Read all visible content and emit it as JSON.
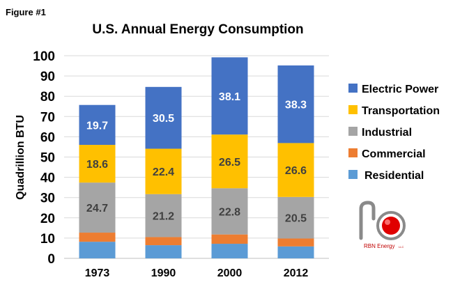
{
  "figure_label": "Figure #1",
  "logo_text": "RBN Energy",
  "logo_suffix": "LLC",
  "chart_data": {
    "type": "bar",
    "stacked": true,
    "title": "U.S. Annual Energy Consumption",
    "xlabel": "",
    "ylabel": "Quadrillion BTU",
    "ylim": [
      0,
      100
    ],
    "yticks": [
      0,
      10,
      20,
      30,
      40,
      50,
      60,
      70,
      80,
      90,
      100
    ],
    "grid": true,
    "legend_position": "right",
    "categories": [
      "1973",
      "1990",
      "2000",
      "2012"
    ],
    "series": [
      {
        "name": "Residential",
        "color": "#5b9bd5",
        "values": [
          8.2,
          6.5,
          7.2,
          5.9
        ],
        "labels": [
          "",
          "",
          "",
          ""
        ]
      },
      {
        "name": "Commercial",
        "color": "#ed7d31",
        "values": [
          4.5,
          4.0,
          4.6,
          3.9
        ],
        "labels": [
          "",
          "",
          "",
          ""
        ]
      },
      {
        "name": "Industrial",
        "color": "#a5a5a5",
        "values": [
          24.7,
          21.2,
          22.8,
          20.5
        ],
        "labels": [
          "24.7",
          "21.2",
          "22.8",
          "20.5"
        ]
      },
      {
        "name": "Transportation",
        "color": "#ffc000",
        "values": [
          18.6,
          22.4,
          26.5,
          26.6
        ],
        "labels": [
          "18.6",
          "22.4",
          "26.5",
          "26.6"
        ]
      },
      {
        "name": "Electric Power",
        "color": "#4472c4",
        "values": [
          19.7,
          30.5,
          38.1,
          38.3
        ],
        "labels": [
          "19.7",
          "30.5",
          "38.1",
          "38.3"
        ]
      }
    ],
    "legend_order": [
      "Electric Power",
      "Transportation",
      "Industrial",
      "Commercial",
      "Residential"
    ]
  }
}
